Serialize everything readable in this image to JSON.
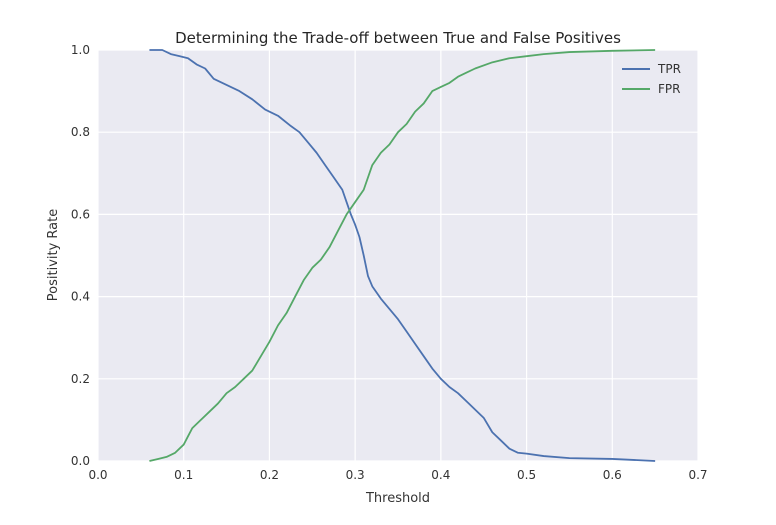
{
  "chart_data": {
    "type": "line",
    "title": "Determining the Trade-off between True and False Positives",
    "xlabel": "Threshold",
    "ylabel": "Positivity Rate",
    "xlim": [
      0.0,
      0.7
    ],
    "ylim": [
      0.0,
      1.0
    ],
    "xticks": [
      "0.0",
      "0.1",
      "0.2",
      "0.3",
      "0.4",
      "0.5",
      "0.6",
      "0.7"
    ],
    "yticks": [
      "0.0",
      "0.2",
      "0.4",
      "0.6",
      "0.8",
      "1.0"
    ],
    "grid": true,
    "legend_position": "top-right",
    "background_color": "#EAEAF2",
    "series": [
      {
        "name": "TPR",
        "color": "#4C72B0",
        "x": [
          0.06,
          0.075,
          0.085,
          0.095,
          0.105,
          0.115,
          0.125,
          0.135,
          0.15,
          0.165,
          0.18,
          0.195,
          0.21,
          0.225,
          0.235,
          0.245,
          0.255,
          0.265,
          0.275,
          0.285,
          0.29,
          0.295,
          0.3,
          0.305,
          0.31,
          0.315,
          0.32,
          0.33,
          0.34,
          0.35,
          0.36,
          0.37,
          0.38,
          0.39,
          0.4,
          0.41,
          0.42,
          0.43,
          0.44,
          0.45,
          0.46,
          0.47,
          0.48,
          0.49,
          0.5,
          0.52,
          0.55,
          0.6,
          0.65
        ],
        "y": [
          1.0,
          1.0,
          0.99,
          0.985,
          0.98,
          0.965,
          0.955,
          0.93,
          0.915,
          0.9,
          0.88,
          0.855,
          0.84,
          0.815,
          0.8,
          0.775,
          0.75,
          0.72,
          0.69,
          0.66,
          0.63,
          0.6,
          0.575,
          0.545,
          0.5,
          0.45,
          0.425,
          0.395,
          0.37,
          0.345,
          0.315,
          0.285,
          0.255,
          0.225,
          0.2,
          0.18,
          0.165,
          0.145,
          0.125,
          0.105,
          0.07,
          0.05,
          0.03,
          0.02,
          0.018,
          0.012,
          0.007,
          0.005,
          0.0
        ]
      },
      {
        "name": "FPR",
        "color": "#55A868",
        "x": [
          0.06,
          0.07,
          0.08,
          0.09,
          0.1,
          0.105,
          0.11,
          0.12,
          0.13,
          0.14,
          0.15,
          0.16,
          0.17,
          0.18,
          0.19,
          0.2,
          0.21,
          0.22,
          0.23,
          0.24,
          0.25,
          0.26,
          0.27,
          0.28,
          0.29,
          0.3,
          0.31,
          0.32,
          0.33,
          0.34,
          0.35,
          0.36,
          0.37,
          0.38,
          0.39,
          0.4,
          0.41,
          0.42,
          0.43,
          0.44,
          0.46,
          0.48,
          0.5,
          0.52,
          0.55,
          0.6,
          0.65
        ],
        "y": [
          0.0,
          0.005,
          0.01,
          0.02,
          0.04,
          0.06,
          0.08,
          0.1,
          0.12,
          0.14,
          0.165,
          0.18,
          0.2,
          0.22,
          0.255,
          0.29,
          0.33,
          0.36,
          0.4,
          0.44,
          0.47,
          0.49,
          0.52,
          0.56,
          0.6,
          0.63,
          0.66,
          0.72,
          0.75,
          0.77,
          0.8,
          0.82,
          0.85,
          0.87,
          0.9,
          0.91,
          0.92,
          0.935,
          0.945,
          0.955,
          0.97,
          0.98,
          0.985,
          0.99,
          0.995,
          0.998,
          1.0
        ]
      }
    ]
  }
}
